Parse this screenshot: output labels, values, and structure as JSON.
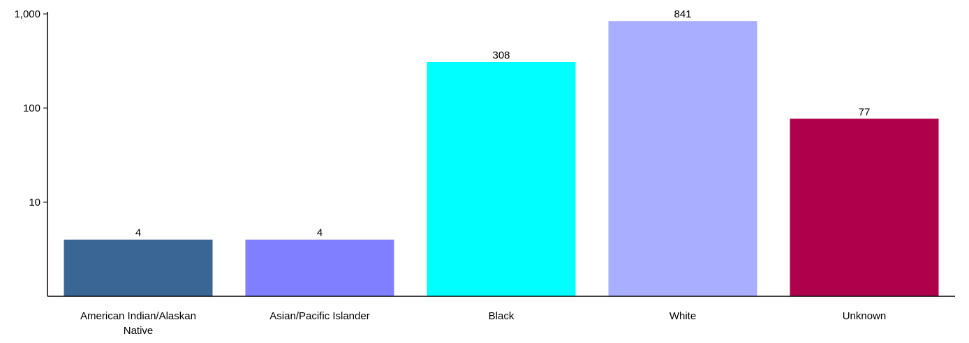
{
  "chart_data": {
    "type": "bar",
    "title": "",
    "xlabel": "",
    "ylabel": "",
    "yscale": "log",
    "ylim": [
      1,
      1000
    ],
    "yticks": [
      {
        "value": 10,
        "label": "10"
      },
      {
        "value": 100,
        "label": "100"
      },
      {
        "value": 1000,
        "label": "1,000"
      }
    ],
    "grid": false,
    "categories": [
      "American Indian/Alaskan Native",
      "Asian/Pacific Islander",
      "Black",
      "White",
      "Unknown"
    ],
    "values": [
      4,
      4,
      308,
      841,
      77
    ],
    "data_labels": [
      "4",
      "4",
      "308",
      "841",
      "77"
    ],
    "colors": [
      "#3A6696",
      "#7F7FFF",
      "#00FFFF",
      "#AAAEFF",
      "#AE004B"
    ]
  }
}
